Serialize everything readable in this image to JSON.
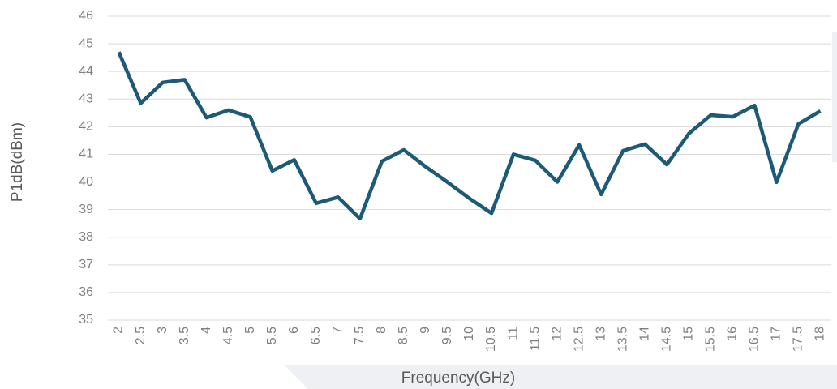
{
  "chart_data": {
    "type": "line",
    "x_label": "Frequency(GHz)",
    "y_label": "P1dB(dBm)",
    "categories": [
      "2",
      "2.5",
      "3",
      "3.5",
      "4",
      "4.5",
      "5",
      "5.5",
      "6",
      "6.5",
      "7",
      "7.5",
      "8",
      "8.5",
      "9",
      "9.5",
      "10",
      "10.5",
      "11",
      "11.5",
      "12",
      "12.5",
      "13",
      "13.5",
      "14",
      "14.5",
      "15",
      "15.5",
      "16",
      "16.5",
      "17",
      "17.5",
      "18"
    ],
    "series": [
      {
        "name": "P1dB",
        "color": "#1d5a78",
        "values": [
          44.7,
          42.85,
          43.6,
          43.7,
          42.33,
          42.6,
          42.35,
          40.4,
          40.8,
          39.23,
          39.45,
          38.67,
          40.75,
          41.16,
          40.55,
          39.99,
          39.4,
          38.87,
          41.0,
          40.78,
          40.0,
          41.34,
          39.55,
          41.13,
          41.37,
          40.63,
          41.75,
          42.42,
          42.36,
          42.77,
          39.99,
          42.1,
          42.57
        ]
      }
    ],
    "ylim": [
      35,
      46
    ],
    "yticks": [
      35,
      36,
      37,
      38,
      39,
      40,
      41,
      42,
      43,
      44,
      45,
      46
    ],
    "grid": true
  }
}
